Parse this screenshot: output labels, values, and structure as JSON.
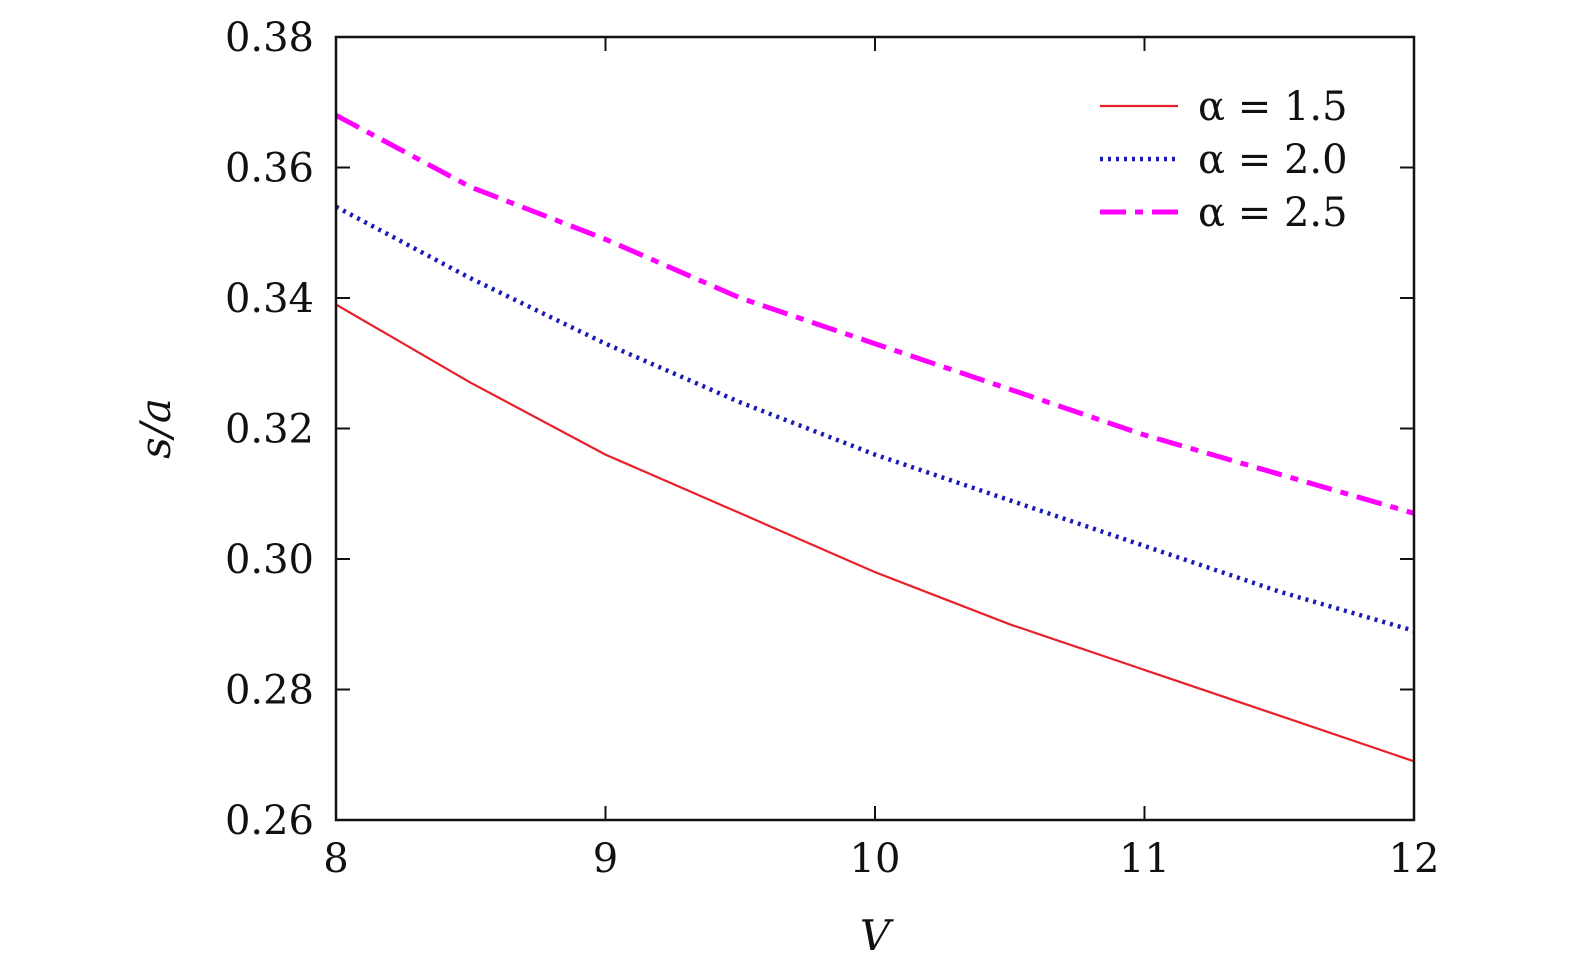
{
  "chart_data": {
    "type": "line",
    "title": "",
    "xlabel": "V",
    "ylabel": "s/a",
    "xlim": [
      8,
      12
    ],
    "ylim": [
      0.26,
      0.38
    ],
    "xticks": [
      8,
      9,
      10,
      11,
      12
    ],
    "xtick_labels": [
      "8",
      "9",
      "10",
      "11",
      "12"
    ],
    "yticks": [
      0.26,
      0.28,
      0.3,
      0.32,
      0.34,
      0.36,
      0.38
    ],
    "ytick_labels": [
      "0.26",
      "0.28",
      "0.30",
      "0.32",
      "0.34",
      "0.36",
      "0.38"
    ],
    "grid": false,
    "legend_position": "top-right",
    "x": [
      8.0,
      8.5,
      9.0,
      9.5,
      10.0,
      10.5,
      11.0,
      11.5,
      12.0
    ],
    "series": [
      {
        "name": "α = 1.5",
        "color": "#e8202a",
        "style": "solid",
        "values": [
          0.339,
          0.327,
          0.316,
          0.307,
          0.298,
          0.29,
          0.283,
          0.276,
          0.269
        ]
      },
      {
        "name": "α = 2.0",
        "color": "#1a1ab8",
        "style": "dotted",
        "values": [
          0.354,
          0.343,
          0.333,
          0.324,
          0.316,
          0.309,
          0.302,
          0.295,
          0.289
        ]
      },
      {
        "name": "α = 2.5",
        "color": "#ff00ff",
        "style": "dashdot",
        "values": [
          0.368,
          0.357,
          0.349,
          0.34,
          0.333,
          0.326,
          0.319,
          0.313,
          0.307
        ]
      }
    ]
  }
}
